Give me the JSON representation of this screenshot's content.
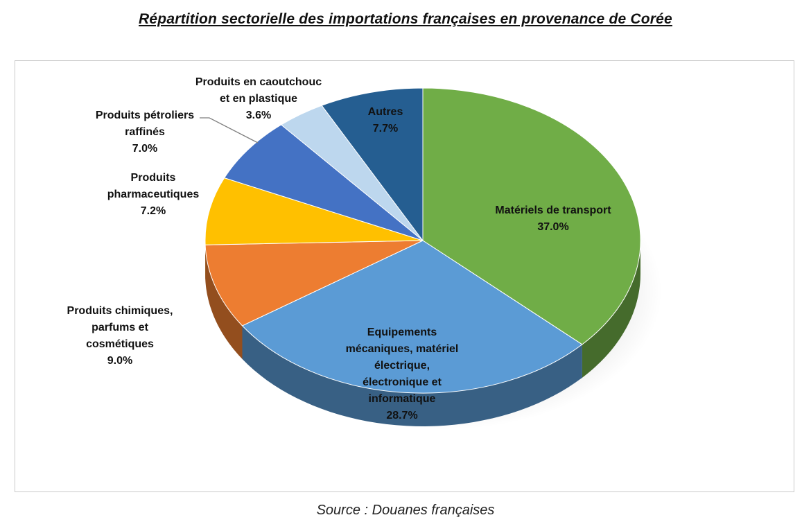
{
  "title": "Répartition sectorielle des importations françaises en provenance de Corée",
  "source": "Source : Douanes françaises",
  "chart_data": {
    "type": "pie",
    "title": "Répartition sectorielle des importations françaises en provenance de Corée",
    "slices": [
      {
        "name": "Matériels de transport",
        "value": 37.0,
        "label": "37.0%",
        "color": "#70ad47"
      },
      {
        "name": "Equipements mécaniques, matériel électrique, électronique et informatique",
        "value": 28.7,
        "label": "28.7%",
        "color": "#5b9bd5"
      },
      {
        "name": "Produits chimiques, parfums et cosmétiques",
        "value": 9.0,
        "label": "9.0%",
        "color": "#ed7d31"
      },
      {
        "name": "Produits pharmaceutiques",
        "value": 7.2,
        "label": "7.2%",
        "color": "#ffc000"
      },
      {
        "name": "Produits pétroliers raffinés",
        "value": 7.0,
        "label": "7.0%",
        "color": "#4472c4"
      },
      {
        "name": "Produits en caoutchouc et en plastique",
        "value": 3.6,
        "label": "3.6%",
        "color": "#bdd7ee"
      },
      {
        "name": "Autres",
        "value": 7.7,
        "label": "7.7%",
        "color": "#255e91"
      }
    ]
  }
}
